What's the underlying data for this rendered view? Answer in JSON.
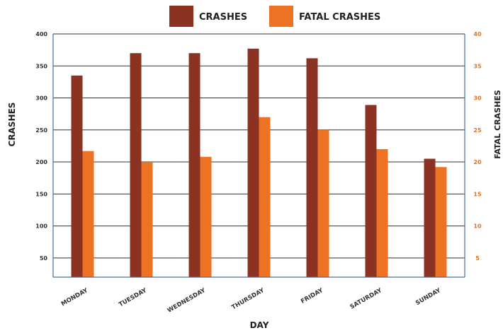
{
  "chart_data": {
    "type": "bar",
    "title": "",
    "xlabel": "DAY",
    "ylabel": "CRASHES",
    "ylabel_right": "FATAL CRASHES",
    "categories": [
      "MONDAY",
      "TUESDAY",
      "WEDNESDAY",
      "THURSDAY",
      "FRIDAY",
      "SATURDAY",
      "SUNDAY"
    ],
    "series": [
      {
        "name": "CRASHES",
        "axis": "left",
        "color": "#8b3222",
        "values": [
          335,
          370,
          370,
          377,
          362,
          289,
          205
        ]
      },
      {
        "name": "FATAL CRASHES",
        "axis": "right",
        "color": "#ee7223",
        "values": [
          21.7,
          20,
          20.8,
          27,
          25,
          22,
          19.2
        ]
      }
    ],
    "ylim": [
      20,
      400
    ],
    "ylim_right": [
      2,
      40
    ],
    "yticks": [
      50,
      100,
      150,
      200,
      250,
      300,
      350,
      400
    ],
    "yticks_right": [
      5,
      10,
      15,
      20,
      25,
      30,
      35,
      40
    ],
    "grid": true,
    "legend": "top-center"
  }
}
